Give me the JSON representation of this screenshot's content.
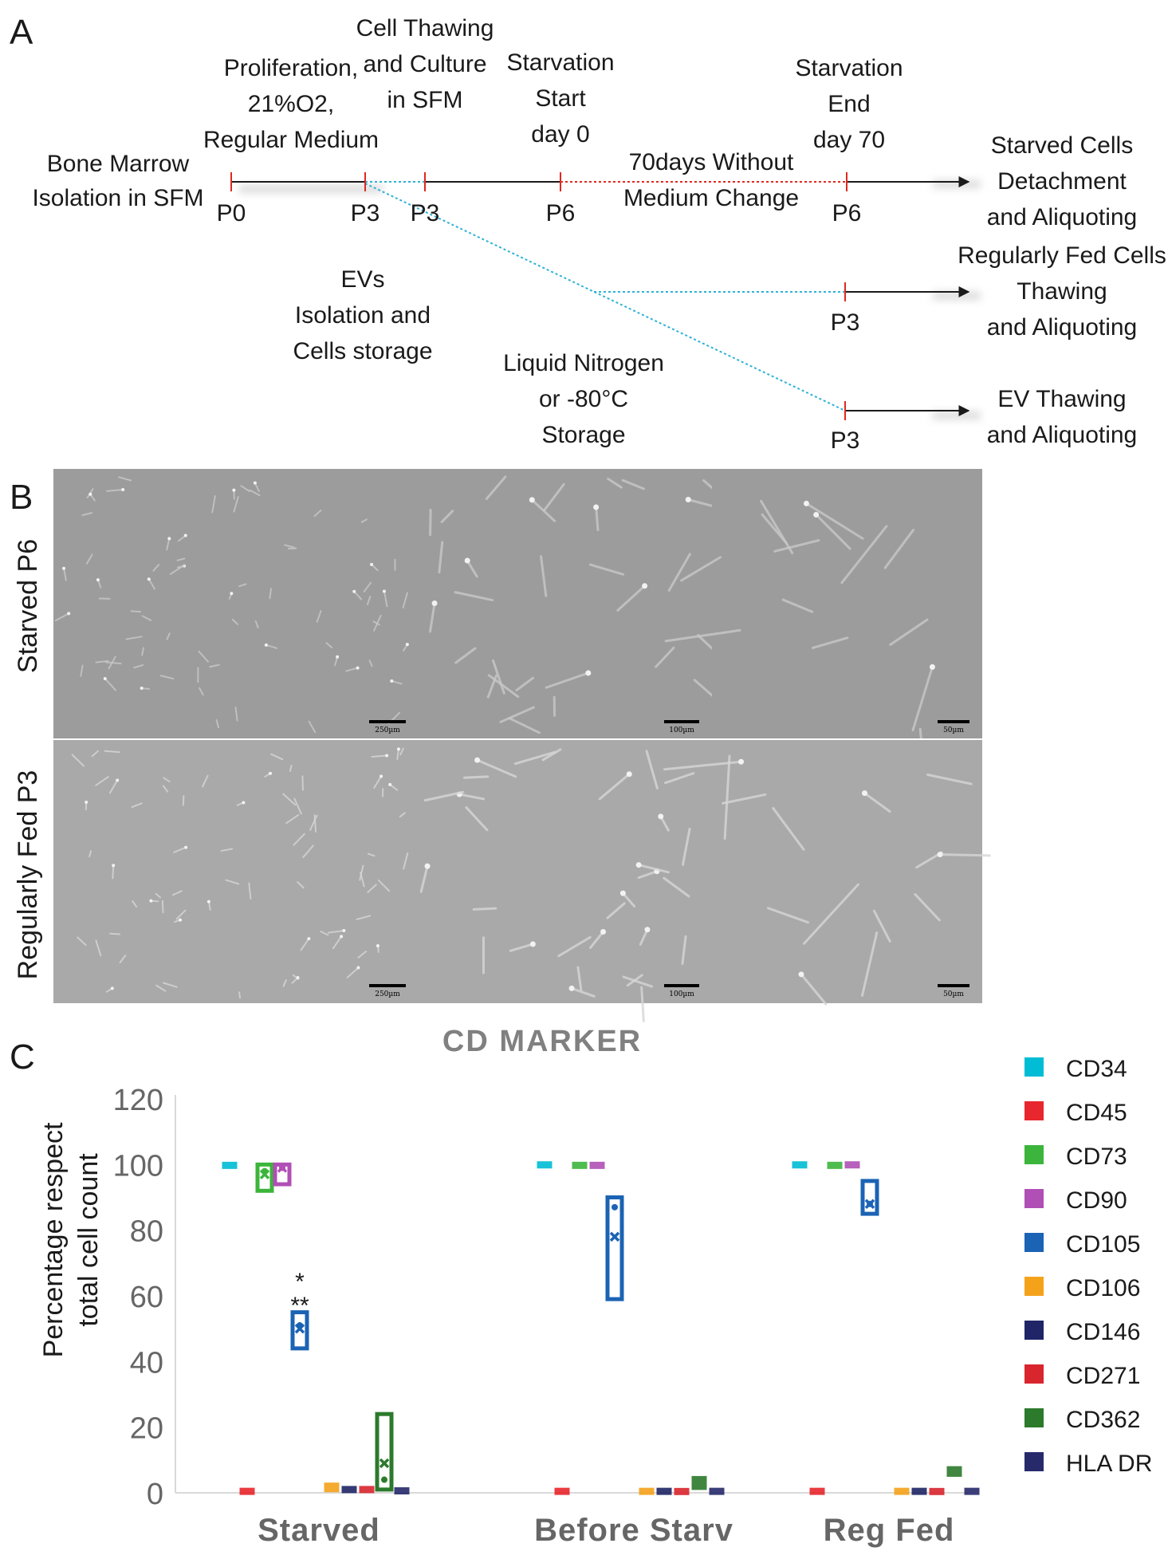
{
  "panel_letters": {
    "a": "A",
    "b": "B",
    "c": "C"
  },
  "timeline": {
    "start": [
      "Bone Marrow",
      "Isolation in SFM"
    ],
    "proliferation": [
      "Proliferation,",
      "21%O2,",
      "Regular Medium"
    ],
    "thawing": [
      "Cell Thawing",
      "and Culture",
      "in SFM"
    ],
    "starv_start": [
      "Starvation",
      "Start",
      "day 0"
    ],
    "starv_end": [
      "Starvation",
      "End",
      "day 70"
    ],
    "no_change": [
      "70days Without",
      "Medium Change"
    ],
    "starved_out": [
      "Starved Cells",
      "Detachment",
      "and Aliquoting"
    ],
    "fed_out": [
      "Regularly Fed Cells",
      "Thawing",
      "and Aliquoting"
    ],
    "ev_out": [
      "EV Thawing",
      "and Aliquoting"
    ],
    "evs": [
      "EVs",
      "Isolation and",
      "Cells storage"
    ],
    "storage": [
      "Liquid Nitrogen",
      "or -80°C",
      "Storage"
    ],
    "passages": {
      "p0": "P0",
      "p3a": "P3",
      "p3b": "P3",
      "p6a": "P6",
      "p6b": "P6",
      "p3c": "P3",
      "p3d": "P3"
    },
    "colors": {
      "timeline": "#1a1a1a",
      "tick": "#e0281e",
      "starvation_dotted": "#e0281e",
      "storage_dotted": "#2eb2d6"
    }
  },
  "micrographs": {
    "row_labels": [
      "Starved P6",
      "Regularly Fed  P3"
    ],
    "scale_bars": [
      "250µm",
      "100µm",
      "50µm",
      "250µm",
      "100µm",
      "50µm"
    ],
    "image_colors": {
      "starved": "#9c9c9c",
      "fed": "#a9a9a9"
    }
  },
  "chart_data": {
    "type": "box",
    "title": "CD MARKER",
    "ylabel": "Percentage respect total cell count",
    "ylim": [
      0,
      120
    ],
    "yticks": [
      0,
      20,
      40,
      60,
      80,
      100,
      120
    ],
    "categories": [
      "Starved",
      "Before Starv",
      "Reg Fed"
    ],
    "legend_position": "right",
    "series": [
      {
        "name": "CD34",
        "color": "#00bcd4",
        "values": [
          {
            "q1": 99.5,
            "q3": 100,
            "median": 99.8,
            "mean": 99.7
          },
          {
            "q1": 99.8,
            "q3": 100,
            "median": 100,
            "mean": 99.9
          },
          {
            "q1": 99.8,
            "q3": 100,
            "median": 100,
            "mean": 99.9
          }
        ]
      },
      {
        "name": "CD45",
        "color": "#e8262d",
        "values": [
          {
            "q1": 0.3,
            "q3": 0.6,
            "median": 0.5,
            "mean": 0.5
          },
          {
            "q1": 0.3,
            "q3": 0.6,
            "median": 0.5,
            "mean": 0.5
          },
          {
            "q1": 0.3,
            "q3": 0.6,
            "median": 0.5,
            "mean": 0.5
          }
        ]
      },
      {
        "name": "CD73",
        "color": "#3bb53b",
        "values": [
          {
            "q1": 92,
            "q3": 100,
            "median": 98,
            "mean": 97
          },
          {
            "q1": 99.5,
            "q3": 100,
            "median": 99.8,
            "mean": 99.7
          },
          {
            "q1": 99.5,
            "q3": 100,
            "median": 99.8,
            "mean": 99.7
          }
        ]
      },
      {
        "name": "CD90",
        "color": "#b04fb5",
        "values": [
          {
            "q1": 94,
            "q3": 100,
            "median": 99,
            "mean": 99
          },
          {
            "q1": 99.5,
            "q3": 100,
            "median": 99.8,
            "mean": 99.8
          },
          {
            "q1": 99.8,
            "q3": 100,
            "median": 100,
            "mean": 100
          }
        ]
      },
      {
        "name": "CD105",
        "color": "#1b63b4",
        "values": [
          {
            "q1": 44,
            "q3": 55,
            "median": 51,
            "mean": 50
          },
          {
            "q1": 59,
            "q3": 90,
            "median": 87,
            "mean": 78
          },
          {
            "q1": 85,
            "q3": 95,
            "median": 88,
            "mean": 88
          }
        ]
      },
      {
        "name": "CD106",
        "color": "#f5a21b",
        "values": [
          {
            "q1": 0.3,
            "q3": 3,
            "median": 1.5,
            "mean": 1.5
          },
          {
            "q1": 0.2,
            "q3": 0.7,
            "median": 0.4,
            "mean": 0.4
          },
          {
            "q1": 0.2,
            "q3": 0.7,
            "median": 0.4,
            "mean": 0.4
          }
        ]
      },
      {
        "name": "CD146",
        "color": "#1f2566",
        "values": [
          {
            "q1": 0.5,
            "q3": 1.5,
            "median": 1,
            "mean": 1
          },
          {
            "q1": 0.2,
            "q3": 0.7,
            "median": 0.4,
            "mean": 0.4
          },
          {
            "q1": 0.2,
            "q3": 0.7,
            "median": 0.4,
            "mean": 0.4
          }
        ]
      },
      {
        "name": "CD271",
        "color": "#d9252e",
        "values": [
          {
            "q1": 0.5,
            "q3": 1.5,
            "median": 1,
            "mean": 1
          },
          {
            "q1": 0.2,
            "q3": 0.6,
            "median": 0.4,
            "mean": 0.4
          },
          {
            "q1": 0.2,
            "q3": 0.6,
            "median": 0.4,
            "mean": 0.4
          }
        ]
      },
      {
        "name": "CD362",
        "color": "#2c7a2c",
        "values": [
          {
            "q1": 1,
            "q3": 24,
            "median": 4,
            "mean": 9
          },
          {
            "q1": 1,
            "q3": 5,
            "median": 3,
            "mean": 3
          },
          {
            "q1": 5,
            "q3": 8,
            "median": 6.5,
            "mean": 6.5
          }
        ]
      },
      {
        "name": "HLA DR",
        "color": "#262a6b",
        "values": [
          {
            "q1": 0.2,
            "q3": 1,
            "median": 0.6,
            "mean": 0.6
          },
          {
            "q1": 0.2,
            "q3": 0.7,
            "median": 0.4,
            "mean": 0.4
          },
          {
            "q1": 0.2,
            "q3": 0.7,
            "median": 0.4,
            "mean": 0.4
          }
        ]
      }
    ],
    "annotations": [
      "*",
      "**"
    ]
  }
}
